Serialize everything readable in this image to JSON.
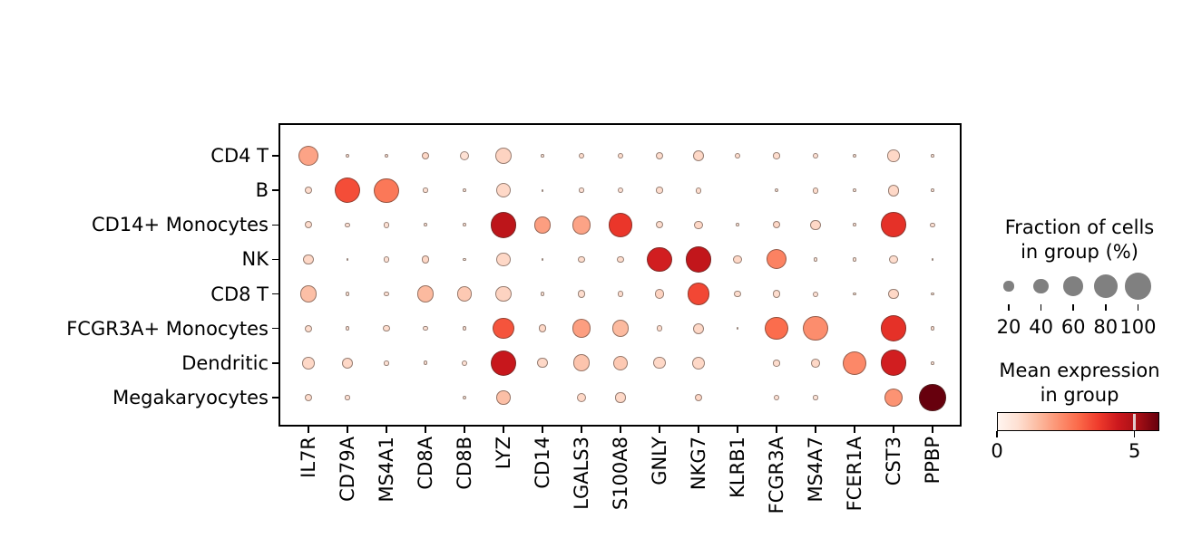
{
  "chart_data": {
    "type": "dotplot",
    "title": "",
    "genes": [
      "IL7R",
      "CD79A",
      "MS4A1",
      "CD8A",
      "CD8B",
      "LYZ",
      "CD14",
      "LGALS3",
      "S100A8",
      "GNLY",
      "NKG7",
      "KLRB1",
      "FCGR3A",
      "MS4A7",
      "FCER1A",
      "CST3",
      "PPBP"
    ],
    "cell_types": [
      "CD4 T",
      "B",
      "CD14+ Monocytes",
      "NK",
      "CD8 T",
      "FCGR3A+ Monocytes",
      "Dendritic",
      "Megakaryocytes"
    ],
    "fraction_pct": [
      [
        62,
        4,
        4,
        11,
        17,
        47,
        3,
        9,
        9,
        12,
        22,
        9,
        10,
        7,
        4,
        27,
        3
      ],
      [
        11,
        95,
        88,
        6,
        3,
        39,
        2,
        6,
        7,
        10,
        9,
        0,
        4,
        9,
        3,
        25,
        3
      ],
      [
        12,
        6,
        8,
        3,
        3,
        96,
        48,
        55,
        85,
        12,
        15,
        3,
        12,
        20,
        3,
        90,
        6
      ],
      [
        20,
        2,
        8,
        12,
        3,
        34,
        2,
        10,
        11,
        88,
        97,
        15,
        62,
        4,
        4,
        16,
        2
      ],
      [
        46,
        4,
        6,
        45,
        38,
        42,
        4,
        12,
        9,
        17,
        75,
        11,
        13,
        7,
        3,
        20,
        3
      ],
      [
        12,
        5,
        10,
        6,
        5,
        68,
        13,
        57,
        48,
        9,
        23,
        2,
        78,
        88,
        0,
        97,
        5
      ],
      [
        28,
        22,
        6,
        5,
        8,
        95,
        20,
        48,
        38,
        26,
        31,
        0,
        10,
        16,
        82,
        97,
        3
      ],
      [
        12,
        6,
        0,
        0,
        5,
        35,
        0,
        18,
        20,
        0,
        13,
        0,
        7,
        6,
        0,
        55,
        100
      ]
    ],
    "mean_expression": [
      [
        1.9,
        0.7,
        0.7,
        0.9,
        0.7,
        1.0,
        0.6,
        0.8,
        0.8,
        0.8,
        0.9,
        0.8,
        0.8,
        0.7,
        0.6,
        0.9,
        0.6
      ],
      [
        0.8,
        3.4,
        2.7,
        0.7,
        0.6,
        0.9,
        0.5,
        0.7,
        0.7,
        0.8,
        0.8,
        0.0,
        0.6,
        0.8,
        0.6,
        0.9,
        0.6
      ],
      [
        0.8,
        0.7,
        0.7,
        0.6,
        0.6,
        4.7,
        2.0,
        1.9,
        3.8,
        0.8,
        0.9,
        0.6,
        0.9,
        0.9,
        0.6,
        3.9,
        0.7
      ],
      [
        0.9,
        0.5,
        0.7,
        0.9,
        0.6,
        0.9,
        0.5,
        0.8,
        0.8,
        4.3,
        4.6,
        0.9,
        2.5,
        0.6,
        0.6,
        0.8,
        0.5
      ],
      [
        1.4,
        0.6,
        0.7,
        1.5,
        1.2,
        1.0,
        0.6,
        0.8,
        0.8,
        1.0,
        3.5,
        0.8,
        0.8,
        0.7,
        0.6,
        0.9,
        0.6
      ],
      [
        0.8,
        0.7,
        0.8,
        0.7,
        0.7,
        3.3,
        0.9,
        2.0,
        1.5,
        0.8,
        0.9,
        0.5,
        2.9,
        2.3,
        0.0,
        3.9,
        0.7
      ],
      [
        0.9,
        0.9,
        0.7,
        0.7,
        0.7,
        4.5,
        0.9,
        1.3,
        1.2,
        0.9,
        0.9,
        0.0,
        0.8,
        0.9,
        2.4,
        4.3,
        0.6
      ],
      [
        0.8,
        0.7,
        0.0,
        0.0,
        0.6,
        1.4,
        0.0,
        0.9,
        0.9,
        0.0,
        0.9,
        0.0,
        0.7,
        0.6,
        0.0,
        2.2,
        5.9
      ]
    ],
    "size_legend": {
      "title_line1": "Fraction of cells",
      "title_line2": "in group (%)",
      "values": [
        "20",
        "40",
        "60",
        "80",
        "100"
      ],
      "values_numeric": [
        20,
        40,
        60,
        80,
        100
      ],
      "dot_color": "#808080"
    },
    "color_legend": {
      "title_line1": "Mean expression",
      "title_line2": "in group",
      "tick_labels": [
        "0",
        "5"
      ],
      "vmin": 0,
      "vmax": 5.9,
      "colormap": "Reds"
    },
    "colormap_stops": [
      [
        0.0,
        255,
        245,
        240
      ],
      [
        0.125,
        254,
        224,
        210
      ],
      [
        0.25,
        252,
        187,
        161
      ],
      [
        0.375,
        252,
        146,
        114
      ],
      [
        0.5,
        251,
        106,
        74
      ],
      [
        0.625,
        239,
        59,
        44
      ],
      [
        0.75,
        203,
        24,
        29
      ],
      [
        0.875,
        165,
        15,
        21
      ],
      [
        1.0,
        103,
        0,
        13
      ]
    ],
    "layout_hints": {
      "legend_position": "right",
      "grid": false,
      "x_tick_rotation": 90
    }
  }
}
